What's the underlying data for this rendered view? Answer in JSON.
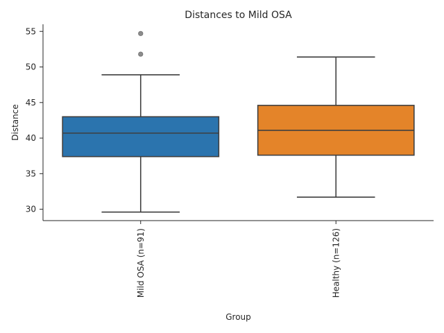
{
  "chart_data": {
    "type": "box",
    "title": "Distances to Mild OSA",
    "xlabel": "Group",
    "ylabel": "Distance",
    "ylim": [
      28.4,
      56.0
    ],
    "yticks": [
      30,
      35,
      40,
      45,
      50,
      55
    ],
    "grid": false,
    "categories": [
      "Mild OSA (n=91)",
      "Healthy (n=126)"
    ],
    "boxes": [
      {
        "category": "Mild OSA (n=91)",
        "whisker_low": 29.6,
        "q1": 37.4,
        "median": 40.7,
        "q3": 43.0,
        "whisker_high": 48.9,
        "outliers": [
          51.8,
          54.7
        ],
        "color": "#2b74ae"
      },
      {
        "category": "Healthy (n=126)",
        "whisker_low": 31.7,
        "q1": 37.6,
        "median": 41.1,
        "q3": 44.6,
        "whisker_high": 51.4,
        "outliers": [],
        "color": "#e48429"
      }
    ]
  }
}
